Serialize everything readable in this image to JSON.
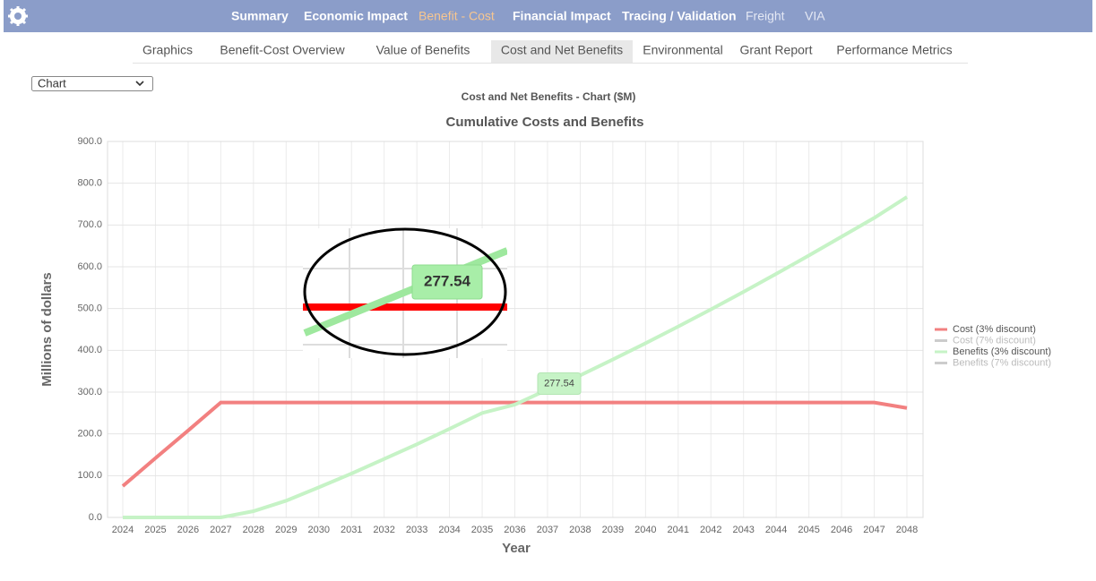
{
  "nav": [
    "Summary",
    "Economic Impact",
    "Benefit - Cost",
    "Financial Impact",
    "Tracing / Validation",
    "Freight",
    "VIA"
  ],
  "tabs": [
    "Graphics",
    "Benefit-Cost Overview",
    "Value of Benefits",
    "Cost and Net Benefits",
    "Environmental",
    "Grant Report",
    "Performance Metrics"
  ],
  "select": "Chart",
  "chart_data": {
    "type": "line",
    "subtitle": "Cost and Net Benefits - Chart ($M)",
    "title": "Cumulative Costs and Benefits",
    "x_label": "Year",
    "y_label": "Millions of dollars",
    "categories": [
      "2024",
      "2025",
      "2026",
      "2027",
      "2028",
      "2029",
      "2030",
      "2031",
      "2032",
      "2033",
      "2034",
      "2035",
      "2036",
      "2037",
      "2038",
      "2039",
      "2040",
      "2041",
      "2042",
      "2043",
      "2044",
      "2045",
      "2046",
      "2047",
      "2048"
    ],
    "series": [
      {
        "name": "Cost (3% discount)",
        "color": "#f28080",
        "values": [
          75,
          142,
          208,
          275,
          275,
          275,
          275,
          275,
          275,
          275,
          275,
          275,
          275,
          275,
          275,
          275,
          275,
          275,
          275,
          275,
          275,
          275,
          275,
          275,
          262
        ]
      },
      {
        "name": "Cost (7% discount)",
        "color": "#cccccc",
        "hidden": true
      },
      {
        "name": "Benefits (3% discount)",
        "color": "#c6f3c6",
        "values": [
          0,
          0,
          0,
          0,
          15,
          40,
          72,
          105,
          140,
          175,
          212,
          250,
          270,
          306,
          340,
          378,
          417,
          457,
          498,
          540,
          583,
          627,
          672,
          717,
          767
        ]
      },
      {
        "name": "Benefits (7% discount)",
        "color": "#cccccc",
        "hidden": true
      }
    ],
    "ylim": [
      0,
      900
    ],
    "yticks": [
      {
        "value": 0,
        "label": "0.0"
      },
      {
        "value": 100,
        "label": "100.0"
      },
      {
        "value": 200,
        "label": "200.0"
      },
      {
        "value": 300,
        "label": "300.0"
      },
      {
        "value": 400,
        "label": "400.0"
      },
      {
        "value": 500,
        "label": "500.0"
      },
      {
        "value": 600,
        "label": "600.0"
      },
      {
        "value": 700,
        "label": "700.0"
      },
      {
        "value": 800,
        "label": "800.0"
      },
      {
        "value": 900,
        "label": "900.0"
      }
    ],
    "grid": true,
    "legend": "right",
    "tooltip": {
      "value": 277.54,
      "series": 2
    }
  }
}
